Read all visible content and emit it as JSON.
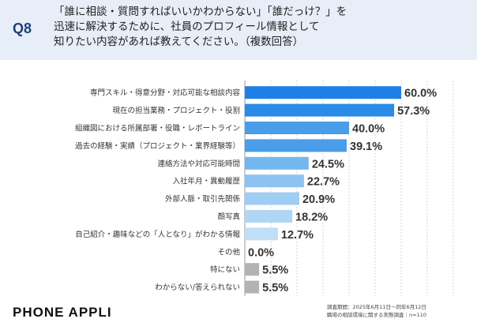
{
  "header": {
    "question_number": "Q8",
    "question_lines": [
      "「誰に相談・質問すればいいかわからない」「誰だっけ？」を",
      "迅速に解決するために、社員のプロフィール情報として",
      "知りたい内容があれば教えてください。（複数回答）"
    ]
  },
  "chart_data": {
    "type": "bar",
    "orientation": "horizontal",
    "categories": [
      "専門スキル・得意分野・対応可能な相談内容",
      "現在の担当業務・プロジェクト・役割",
      "組織図における所属部署・役職・レポートライン",
      "過去の経験・実績（プロジェクト・業界経験等）",
      "連絡方法や対応可能時間",
      "入社年月・異動履歴",
      "外部人脈・取引先関係",
      "顔写真",
      "自己紹介・趣味などの「人となり」がわかる情報",
      "その他",
      "特にない",
      "わからない/答えられない"
    ],
    "values": [
      60.0,
      57.3,
      40.0,
      39.1,
      24.5,
      22.7,
      20.9,
      18.2,
      12.7,
      0.0,
      5.5,
      5.5
    ],
    "value_labels": [
      "60.0%",
      "57.3%",
      "40.0%",
      "39.1%",
      "24.5%",
      "22.7%",
      "20.9%",
      "18.2%",
      "12.7%",
      "0.0%",
      "5.5%",
      "5.5%"
    ],
    "bar_colors": [
      "#1f7fe6",
      "#2a8be6",
      "#4a9de8",
      "#4a9de8",
      "#74b6ef",
      "#8cc3f1",
      "#9fcdf3",
      "#afd6f5",
      "#c0def7",
      "#c0def7",
      "#b3b3b3",
      "#b3b3b3"
    ],
    "xlim": [
      0,
      100
    ],
    "grid": true
  },
  "footer": {
    "brand": "PHONE APPLI",
    "survey_lines": [
      "調査期間：2025年6月11日～同年6月12日",
      "職場の相談環境に関する実態調査｜n=110"
    ]
  }
}
